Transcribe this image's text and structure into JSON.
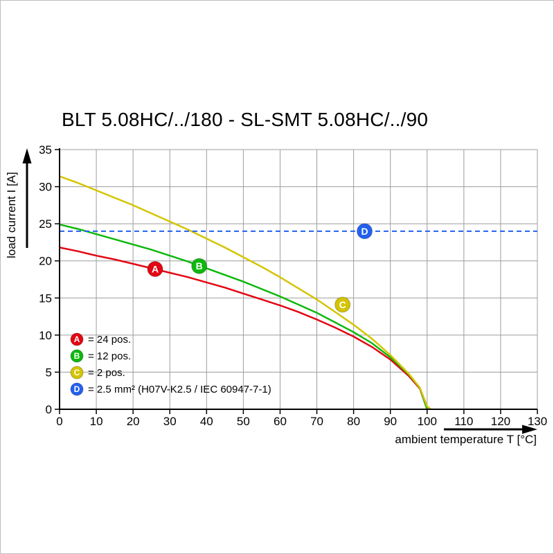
{
  "chart_data": {
    "type": "line",
    "title": "BLT 5.08HC/../180 - SL-SMT 5.08HC/../90",
    "xlabel": "ambient temperature T [°C]",
    "ylabel": "load current I [A]",
    "xlim": [
      0,
      130
    ],
    "ylim": [
      0,
      35
    ],
    "xticks": [
      0,
      10,
      20,
      30,
      40,
      50,
      60,
      70,
      80,
      90,
      100,
      110,
      120,
      130
    ],
    "yticks": [
      0,
      5,
      10,
      15,
      20,
      25,
      30,
      35
    ],
    "grid": true,
    "grid_color": "#9c9c9c",
    "axis_color": "#000000",
    "legend_position": "inside-bottom-left",
    "blue_reference_level": 24,
    "series": [
      {
        "name": "A",
        "legend_label": "= 24 pos.",
        "color": "#e30613",
        "style": "solid",
        "marker_at": [
          26,
          18.9
        ],
        "points": [
          [
            0,
            21.8
          ],
          [
            5,
            21.3
          ],
          [
            10,
            20.7
          ],
          [
            15,
            20.2
          ],
          [
            20,
            19.6
          ],
          [
            25,
            19.0
          ],
          [
            30,
            18.4
          ],
          [
            35,
            17.8
          ],
          [
            40,
            17.1
          ],
          [
            45,
            16.4
          ],
          [
            50,
            15.6
          ],
          [
            55,
            14.8
          ],
          [
            60,
            14.0
          ],
          [
            65,
            13.1
          ],
          [
            70,
            12.1
          ],
          [
            75,
            11.0
          ],
          [
            80,
            9.8
          ],
          [
            85,
            8.4
          ],
          [
            90,
            6.7
          ],
          [
            95,
            4.5
          ],
          [
            98,
            2.8
          ],
          [
            100,
            0
          ]
        ]
      },
      {
        "name": "B",
        "legend_label": "= 12 pos.",
        "color": "#0db80d",
        "style": "solid",
        "marker_at": [
          38,
          19.3
        ],
        "points": [
          [
            0,
            24.9
          ],
          [
            5,
            24.3
          ],
          [
            10,
            23.6
          ],
          [
            15,
            22.9
          ],
          [
            20,
            22.2
          ],
          [
            25,
            21.5
          ],
          [
            30,
            20.7
          ],
          [
            35,
            19.9
          ],
          [
            40,
            19.0
          ],
          [
            45,
            18.1
          ],
          [
            50,
            17.2
          ],
          [
            55,
            16.2
          ],
          [
            60,
            15.2
          ],
          [
            65,
            14.1
          ],
          [
            70,
            13.0
          ],
          [
            75,
            11.7
          ],
          [
            80,
            10.4
          ],
          [
            85,
            8.9
          ],
          [
            90,
            7.0
          ],
          [
            95,
            4.7
          ],
          [
            98,
            2.9
          ],
          [
            100,
            0
          ]
        ]
      },
      {
        "name": "C",
        "legend_label": "= 2 pos.",
        "color": "#d4c400",
        "style": "solid",
        "marker_at": [
          77,
          14.1
        ],
        "points": [
          [
            0,
            31.4
          ],
          [
            5,
            30.5
          ],
          [
            10,
            29.5
          ],
          [
            15,
            28.5
          ],
          [
            20,
            27.5
          ],
          [
            25,
            26.4
          ],
          [
            30,
            25.3
          ],
          [
            35,
            24.2
          ],
          [
            40,
            23.0
          ],
          [
            45,
            21.8
          ],
          [
            50,
            20.5
          ],
          [
            55,
            19.2
          ],
          [
            60,
            17.8
          ],
          [
            65,
            16.3
          ],
          [
            70,
            14.8
          ],
          [
            75,
            13.1
          ],
          [
            80,
            11.4
          ],
          [
            85,
            9.5
          ],
          [
            90,
            7.3
          ],
          [
            95,
            4.8
          ],
          [
            98,
            2.9
          ],
          [
            100,
            0.4
          ],
          [
            101,
            0
          ]
        ]
      },
      {
        "name": "D",
        "legend_label": "= 2.5 mm² (H07V-K2.5 / IEC 60947-7-1)",
        "color": "#2360f0",
        "style": "dashed",
        "marker_at": [
          83,
          24
        ],
        "points": [
          [
            0,
            24
          ],
          [
            130,
            24
          ]
        ]
      }
    ]
  }
}
